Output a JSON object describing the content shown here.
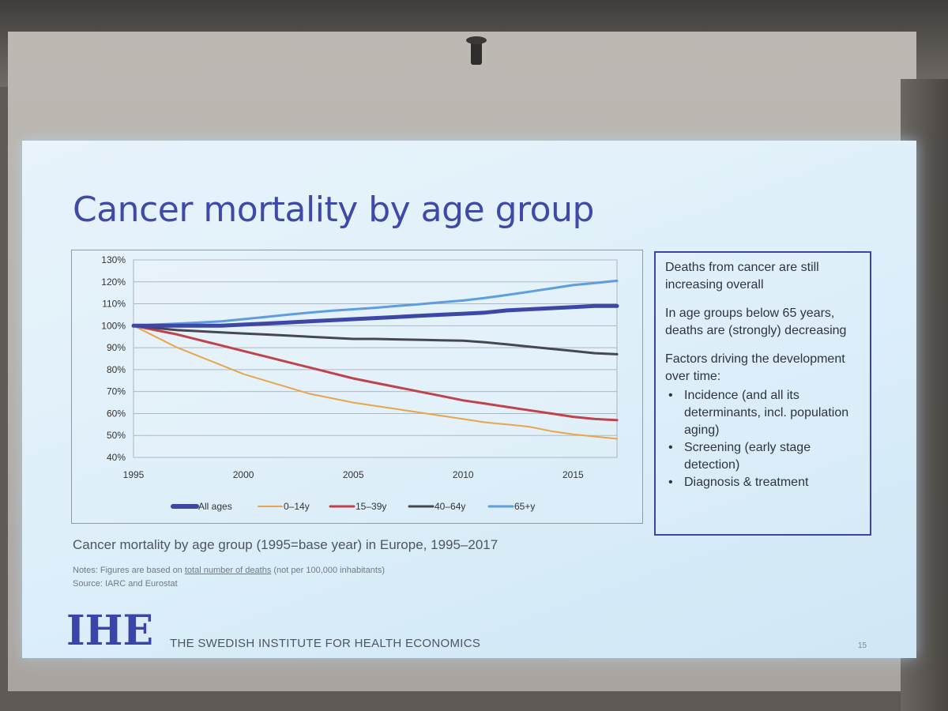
{
  "slide": {
    "title": "Cancer mortality by age group",
    "caption": "Cancer mortality by age group (1995=base year) in Europe, 1995–2017",
    "notes_prefix": "Notes: Figures are based on ",
    "notes_underlined": "total number of deaths",
    "notes_suffix": " (not per 100,000 inhabitants)",
    "source": "Source: IARC and Eurostat",
    "logo_text": "IHE",
    "institute": "THE SWEDISH INSTITUTE FOR HEALTH ECONOMICS",
    "page_number": "15"
  },
  "side_box": {
    "p1": "Deaths from cancer are still increasing overall",
    "p2": "In age groups below 65 years, deaths are (strongly) decreasing",
    "p3": "Factors driving the development over time:",
    "bullets": [
      "Incidence (and all its determinants, incl. population aging)",
      "Screening (early stage detection)",
      "Diagnosis & treatment"
    ]
  },
  "colors": {
    "title": "#3f4aa8",
    "box_border": "#3d44a4"
  },
  "chart_data": {
    "type": "line",
    "title": "",
    "xlabel": "",
    "ylabel": "",
    "x_ticks": [
      "1995",
      "2000",
      "2005",
      "2010",
      "2015"
    ],
    "y_ticks": [
      "40%",
      "50%",
      "60%",
      "70%",
      "80%",
      "90%",
      "100%",
      "110%",
      "120%",
      "130%"
    ],
    "xlim": [
      1995,
      2017
    ],
    "ylim": [
      40,
      130
    ],
    "grid": true,
    "legend_position": "bottom",
    "x": [
      1995,
      1996,
      1997,
      1998,
      1999,
      2000,
      2001,
      2002,
      2003,
      2004,
      2005,
      2006,
      2007,
      2008,
      2009,
      2010,
      2011,
      2012,
      2013,
      2014,
      2015,
      2016,
      2017
    ],
    "series": [
      {
        "name": "All ages",
        "color": "#3d47a6",
        "width": 5,
        "values": [
          100,
          100,
          100,
          100,
          100,
          100.5,
          101,
          101.5,
          102,
          102.5,
          103,
          103.5,
          104,
          104.5,
          105,
          105.5,
          106,
          107,
          107.5,
          108,
          108.5,
          109,
          109
        ]
      },
      {
        "name": "0–14y",
        "color": "#e8a54d",
        "width": 2,
        "values": [
          100,
          95,
          90,
          86,
          82,
          78,
          75,
          72,
          69,
          67,
          65,
          63.5,
          62,
          60.5,
          59,
          57.5,
          56,
          55,
          54,
          52,
          50.5,
          49.5,
          48.5
        ]
      },
      {
        "name": "15–39y",
        "color": "#c0424a",
        "width": 3,
        "values": [
          100,
          98,
          96,
          93.5,
          91,
          88.5,
          86,
          83.5,
          81,
          78.5,
          76,
          74,
          72,
          70,
          68,
          66,
          64.5,
          63,
          61.5,
          60,
          58.5,
          57.5,
          57
        ]
      },
      {
        "name": "40–64y",
        "color": "#45494f",
        "width": 3,
        "values": [
          100,
          99,
          98,
          97.5,
          97,
          96.5,
          96,
          95.5,
          95,
          94.5,
          94,
          94,
          93.8,
          93.6,
          93.4,
          93.2,
          92.5,
          91.5,
          90.5,
          89.5,
          88.5,
          87.5,
          87
        ]
      },
      {
        "name": "65+y",
        "color": "#5e9de0",
        "width": 3,
        "values": [
          100,
          100.5,
          101,
          101.5,
          102,
          103,
          104,
          105,
          106,
          106.8,
          107.5,
          108.2,
          109,
          109.8,
          110.7,
          111.5,
          112.7,
          114,
          115.5,
          117,
          118.5,
          119.5,
          120.5
        ]
      }
    ]
  }
}
